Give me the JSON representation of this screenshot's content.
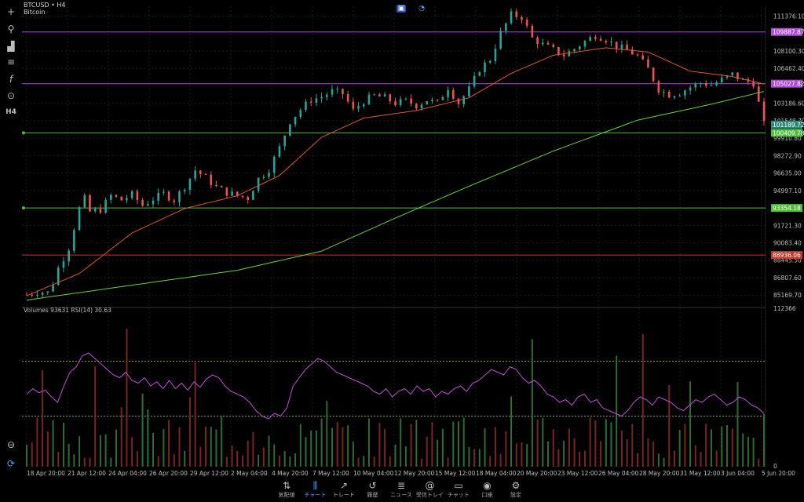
{
  "header": {
    "symbol": "BTCUSD • H4",
    "description": "Bitcoin"
  },
  "left_toolbar": [
    {
      "name": "crosshair-icon",
      "glyph": "+"
    },
    {
      "name": "indicator-icon",
      "glyph": "⚲"
    },
    {
      "name": "objects-icon",
      "glyph": "▟"
    },
    {
      "name": "settings-sliders-icon",
      "glyph": "≡"
    },
    {
      "name": "function-icon",
      "glyph": "f"
    },
    {
      "name": "link-icon",
      "glyph": "⊙"
    },
    {
      "name": "timeframe-icon",
      "glyph": "H4"
    }
  ],
  "price_axis": {
    "labels": [
      "111376.10",
      "108100.30",
      "106462.40",
      "103186.60",
      "101548.70",
      "99910.80",
      "98272.90",
      "96635.00",
      "94997.10",
      "91721.30",
      "90083.40",
      "88445.50",
      "86807.60",
      "85169.70"
    ],
    "markers": [
      {
        "text": "109887.87",
        "color": "#b04bd6"
      },
      {
        "text": "105027.82",
        "color": "#b04bd6"
      },
      {
        "text": "101189.72",
        "color": "#2a8a7a"
      },
      {
        "text": "100409.78",
        "color": "#4fbf3a"
      },
      {
        "text": "93354.18",
        "color": "#4fbf3a"
      },
      {
        "text": "88936.06",
        "color": "#c0392b"
      }
    ]
  },
  "indicator_panel": {
    "label": "Volumes 93631 RSI(14) 30.63",
    "axis_top": "112366",
    "axis_bottom": "0"
  },
  "time_axis": [
    "18 Apr 20:00",
    "21 Apr 12:00",
    "24 Apr 04:00",
    "26 Apr 20:00",
    "29 Apr 12:00",
    "2 May 04:00",
    "4 May 20:00",
    "7 May 12:00",
    "10 May 04:00",
    "12 May 20:00",
    "15 May 12:00",
    "18 May 04:00",
    "20 May 20:00",
    "23 May 12:00",
    "26 May 04:00",
    "28 May 20:00",
    "31 May 12:00",
    "3 Jun 04:00",
    "5 Jun 20:00"
  ],
  "chart_data": {
    "type": "candlestick",
    "symbol": "BTCUSD",
    "timeframe": "H4",
    "ylim": [
      84300,
      112300
    ],
    "horizontal_lines": [
      {
        "price": 109887.87,
        "color": "#b04bd6"
      },
      {
        "price": 105027.82,
        "color": "#b04bd6"
      },
      {
        "price": 100409.78,
        "color": "#4fbf3a"
      },
      {
        "price": 93354.18,
        "color": "#4fbf3a"
      },
      {
        "price": 88936.06,
        "color": "#c0392b"
      }
    ],
    "price_path": [
      [
        0,
        85200
      ],
      [
        2,
        85500
      ],
      [
        4,
        85400
      ],
      [
        5,
        86300
      ],
      [
        6,
        87700
      ],
      [
        8,
        89600
      ],
      [
        9,
        91500
      ],
      [
        10,
        93300
      ],
      [
        11,
        94200
      ],
      [
        12,
        93000
      ],
      [
        14,
        93200
      ],
      [
        16,
        94500
      ],
      [
        18,
        94100
      ],
      [
        20,
        94600
      ],
      [
        22,
        93600
      ],
      [
        24,
        94200
      ],
      [
        26,
        94700
      ],
      [
        28,
        94100
      ],
      [
        30,
        95400
      ],
      [
        32,
        96900
      ],
      [
        34,
        96200
      ],
      [
        36,
        95300
      ],
      [
        38,
        94800
      ],
      [
        40,
        94500
      ],
      [
        42,
        94300
      ],
      [
        44,
        96100
      ],
      [
        46,
        97000
      ],
      [
        48,
        99000
      ],
      [
        50,
        101500
      ],
      [
        52,
        102600
      ],
      [
        54,
        103500
      ],
      [
        56,
        103800
      ],
      [
        58,
        104300
      ],
      [
        60,
        104100
      ],
      [
        62,
        102500
      ],
      [
        64,
        103400
      ],
      [
        66,
        103900
      ],
      [
        68,
        103700
      ],
      [
        70,
        103200
      ],
      [
        72,
        103400
      ],
      [
        74,
        103000
      ],
      [
        76,
        103500
      ],
      [
        78,
        103200
      ],
      [
        80,
        104700
      ],
      [
        82,
        103200
      ],
      [
        84,
        104500
      ],
      [
        86,
        106400
      ],
      [
        88,
        107300
      ],
      [
        90,
        109800
      ],
      [
        92,
        111500
      ],
      [
        94,
        111300
      ],
      [
        96,
        109300
      ],
      [
        98,
        108700
      ],
      [
        100,
        108200
      ],
      [
        102,
        107700
      ],
      [
        104,
        108300
      ],
      [
        106,
        109000
      ],
      [
        108,
        109600
      ],
      [
        110,
        109200
      ],
      [
        112,
        108500
      ],
      [
        114,
        108200
      ],
      [
        116,
        107600
      ],
      [
        118,
        106400
      ],
      [
        120,
        104500
      ],
      [
        122,
        104000
      ],
      [
        124,
        104200
      ],
      [
        126,
        104700
      ],
      [
        128,
        105100
      ],
      [
        130,
        104900
      ],
      [
        132,
        105400
      ],
      [
        134,
        105900
      ],
      [
        136,
        105300
      ],
      [
        138,
        105100
      ],
      [
        139,
        103200
      ],
      [
        140,
        101200
      ]
    ],
    "ema_red": [
      [
        0,
        85100
      ],
      [
        10,
        87200
      ],
      [
        20,
        91000
      ],
      [
        30,
        93300
      ],
      [
        40,
        94500
      ],
      [
        48,
        96400
      ],
      [
        56,
        100000
      ],
      [
        64,
        101800
      ],
      [
        74,
        102500
      ],
      [
        84,
        103700
      ],
      [
        92,
        106000
      ],
      [
        100,
        107700
      ],
      [
        110,
        108400
      ],
      [
        118,
        108000
      ],
      [
        126,
        106200
      ],
      [
        134,
        105700
      ],
      [
        140,
        105000
      ]
    ],
    "ema_green": [
      [
        0,
        84700
      ],
      [
        20,
        86100
      ],
      [
        40,
        87500
      ],
      [
        56,
        89300
      ],
      [
        70,
        92400
      ],
      [
        84,
        95400
      ],
      [
        100,
        98700
      ],
      [
        116,
        101600
      ],
      [
        130,
        103100
      ],
      [
        140,
        104300
      ]
    ],
    "rsi": {
      "scale": [
        0,
        100
      ],
      "levels": [
        70,
        30
      ],
      "values": [
        46,
        50,
        47,
        49,
        44,
        40,
        52,
        62,
        66,
        74,
        76,
        72,
        68,
        64,
        60,
        58,
        62,
        56,
        54,
        58,
        52,
        55,
        50,
        56,
        50,
        54,
        49,
        55,
        51,
        57,
        60,
        58,
        52,
        48,
        46,
        44,
        40,
        34,
        30,
        28,
        32,
        30,
        36,
        52,
        58,
        64,
        68,
        72,
        70,
        66,
        62,
        60,
        58,
        56,
        54,
        52,
        48,
        46,
        50,
        44,
        48,
        50,
        46,
        52,
        48,
        50,
        44,
        48,
        46,
        50,
        52,
        48,
        54,
        56,
        60,
        64,
        62,
        60,
        66,
        64,
        58,
        54,
        56,
        52,
        46,
        44,
        40,
        42,
        38,
        44,
        46,
        40,
        42,
        36,
        34,
        32,
        30,
        34,
        40,
        44,
        42,
        38,
        44,
        42,
        40,
        36,
        34,
        38,
        42,
        40,
        44,
        46,
        42,
        38,
        40,
        44,
        42,
        38,
        36,
        32
      ]
    },
    "volume_max": 112366
  },
  "bottom_nav": [
    {
      "label": "気配値",
      "icon": "arrows-updown-icon",
      "glyph": "⇅",
      "active": false
    },
    {
      "label": "チャート",
      "icon": "candles-icon",
      "glyph": "⫼",
      "active": true
    },
    {
      "label": "トレード",
      "icon": "trend-icon",
      "glyph": "↗",
      "active": false
    },
    {
      "label": "履歴",
      "icon": "history-icon",
      "glyph": "↺",
      "active": false
    },
    {
      "label": "ニュース",
      "icon": "news-icon",
      "glyph": "≣",
      "active": false
    },
    {
      "label": "受信トレイ",
      "icon": "at-icon",
      "glyph": "@",
      "active": false
    },
    {
      "label": "チャット",
      "icon": "chat-icon",
      "glyph": "▭",
      "active": false
    },
    {
      "label": "口座",
      "icon": "account-icon",
      "glyph": "◉",
      "active": false
    },
    {
      "label": "設定",
      "icon": "gear-icon",
      "glyph": "⚙",
      "active": false
    }
  ]
}
